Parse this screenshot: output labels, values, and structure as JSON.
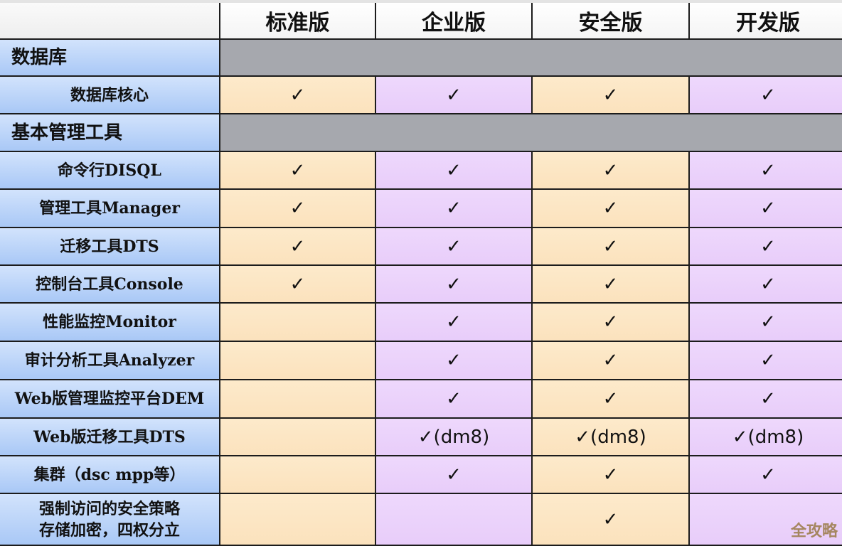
{
  "header": {
    "columns": [
      "标准版",
      "企业版",
      "安全版",
      "开发版"
    ]
  },
  "rows": [
    {
      "type": "section",
      "label": "数据库"
    },
    {
      "type": "item",
      "label": "数据库核心",
      "cells": [
        "✓",
        "✓",
        "✓",
        "✓"
      ]
    },
    {
      "type": "section",
      "label": "基本管理工具"
    },
    {
      "type": "item",
      "label": "命令行DISQL",
      "cells": [
        "✓",
        "✓",
        "✓",
        "✓"
      ]
    },
    {
      "type": "item",
      "label": "管理工具Manager",
      "cells": [
        "✓",
        "✓",
        "✓",
        "✓"
      ]
    },
    {
      "type": "item",
      "label": "迁移工具DTS",
      "cells": [
        "✓",
        "✓",
        "✓",
        "✓"
      ]
    },
    {
      "type": "item",
      "label": "控制台工具Console",
      "cells": [
        "✓",
        "✓",
        "✓",
        "✓"
      ]
    },
    {
      "type": "item",
      "label": "性能监控Monitor",
      "cells": [
        "",
        "✓",
        "✓",
        "✓"
      ]
    },
    {
      "type": "item",
      "label": "审计分析工具Analyzer",
      "cells": [
        "",
        "✓",
        "✓",
        "✓"
      ]
    },
    {
      "type": "item",
      "label": "Web版管理监控平台DEM",
      "cells": [
        "",
        "✓",
        "✓",
        "✓"
      ]
    },
    {
      "type": "item",
      "label": "Web版迁移工具DTS",
      "cells": [
        "",
        "✓(dm8)",
        "✓(dm8)",
        "✓(dm8)"
      ]
    },
    {
      "type": "item",
      "label": "集群（dsc mpp等）",
      "cells": [
        "",
        "✓",
        "✓",
        "✓"
      ]
    },
    {
      "type": "item",
      "label": "强制访问的安全策略 存储加密，四权分立",
      "cells": [
        "",
        "",
        "✓",
        ""
      ]
    }
  ],
  "watermark": "全攻略",
  "colors": {
    "label": "#b9d3f8",
    "standard": "#fde8c6",
    "enterprise": "#ecd3fb",
    "section": "#a6a8ae"
  }
}
